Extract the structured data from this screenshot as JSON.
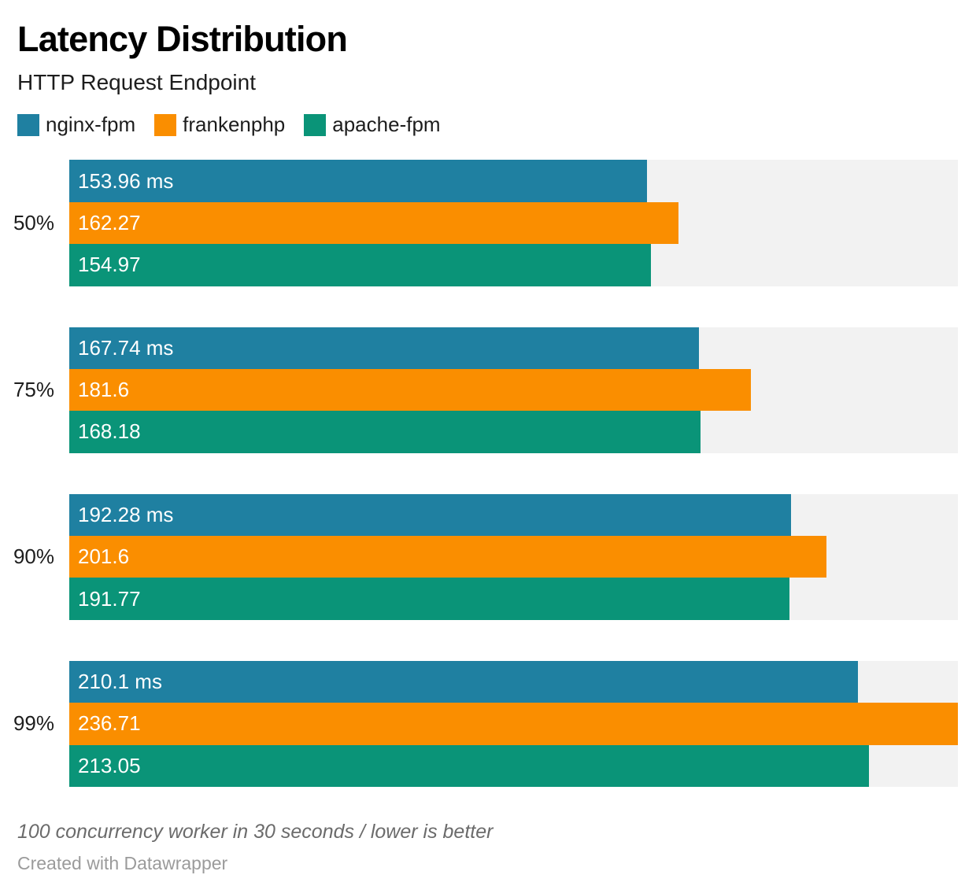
{
  "header": {
    "title": "Latency Distribution",
    "subtitle": "HTTP Request Endpoint"
  },
  "chart_data": {
    "type": "bar",
    "orientation": "horizontal-grouped",
    "title": "Latency Distribution",
    "subtitle": "HTTP Request Endpoint",
    "unit": "ms",
    "categories": [
      "50%",
      "75%",
      "90%",
      "99%"
    ],
    "series": [
      {
        "name": "nginx-fpm",
        "color": "#1f80a1",
        "values": [
          153.96,
          167.74,
          192.28,
          210.1
        ],
        "labels": [
          "153.96 ms",
          "167.74 ms",
          "192.28 ms",
          "210.1 ms"
        ]
      },
      {
        "name": "frankenphp",
        "color": "#fa8e00",
        "values": [
          162.27,
          181.6,
          201.6,
          236.71
        ],
        "labels": [
          "162.27",
          "181.6",
          "201.6",
          "236.71"
        ]
      },
      {
        "name": "apache-fpm",
        "color": "#0a9478",
        "values": [
          154.97,
          168.18,
          191.77,
          213.05
        ],
        "labels": [
          "154.97",
          "168.18",
          "191.77",
          "213.05"
        ]
      }
    ],
    "xlim": [
      0,
      236.71
    ],
    "track_color": "#f2f2f2",
    "legend_position": "top",
    "grid": false,
    "value_labels_inside_bars": true
  },
  "footer": {
    "note": "100 concurrency worker in 30 seconds / lower is better",
    "credit": "Created with Datawrapper"
  }
}
